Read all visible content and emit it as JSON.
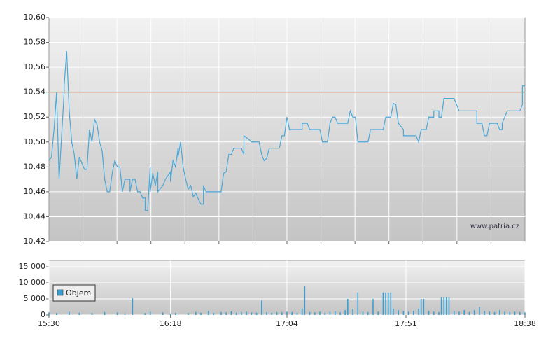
{
  "watermark": "www.patria.cz",
  "chart_data": [
    {
      "type": "line",
      "color": "#4aa8d8",
      "grid": true,
      "reference_line": {
        "value": 10.54,
        "color": "#e06666"
      },
      "x": [
        "15:30",
        "15:31",
        "15:32",
        "15:33",
        "15:34",
        "15:36",
        "15:36",
        "15:37",
        "15:38",
        "15:39",
        "15:40",
        "15:41",
        "15:42",
        "15:44",
        "15:45",
        "15:46",
        "15:47",
        "15:48",
        "15:49",
        "15:50",
        "15:51",
        "15:52",
        "15:53",
        "15:54",
        "15:55",
        "15:56",
        "15:57",
        "15:58",
        "15:59",
        "16:00",
        "16:02",
        "16:02",
        "16:03",
        "16:04",
        "16:05",
        "16:06",
        "16:07",
        "16:08",
        "16:08",
        "16:09",
        "16:10",
        "16:10",
        "16:11",
        "16:12",
        "16:13",
        "16:13",
        "16:15",
        "16:16",
        "16:18",
        "16:18",
        "16:19",
        "16:20",
        "16:21",
        "16:21",
        "16:22",
        "16:23",
        "16:24",
        "16:25",
        "16:26",
        "16:27",
        "16:28",
        "16:29",
        "16:30",
        "16:31",
        "16:31",
        "16:32",
        "16:38",
        "16:39",
        "16:40",
        "16:41",
        "16:42",
        "16:43",
        "16:46",
        "16:47",
        "16:47",
        "16:49",
        "16:50",
        "16:53",
        "16:54",
        "16:55",
        "16:56",
        "16:57",
        "17:01",
        "17:02",
        "17:03",
        "17:04",
        "17:05",
        "17:10",
        "17:10",
        "17:12",
        "17:13",
        "17:17",
        "17:18",
        "17:20",
        "17:21",
        "17:22",
        "17:23",
        "17:24",
        "17:28",
        "17:29",
        "17:30",
        "17:31",
        "17:32",
        "17:36",
        "17:37",
        "17:42",
        "17:43",
        "17:45",
        "17:46",
        "17:47",
        "17:48",
        "17:50",
        "17:50",
        "17:55",
        "17:56",
        "17:57",
        "17:59",
        "18:00",
        "18:02",
        "18:02",
        "18:04",
        "18:04",
        "18:05",
        "18:06",
        "18:10",
        "18:12",
        "18:19",
        "18:19",
        "18:21",
        "18:22",
        "18:23",
        "18:24",
        "18:27",
        "18:28",
        "18:29",
        "18:29",
        "18:30",
        "18:31",
        "18:36",
        "18:37",
        "18:37",
        "18:38"
      ],
      "values": [
        10.485,
        10.488,
        10.51,
        10.54,
        10.47,
        10.54,
        10.545,
        10.573,
        10.525,
        10.5,
        10.49,
        10.47,
        10.488,
        10.478,
        10.478,
        10.51,
        10.5,
        10.518,
        10.514,
        10.5,
        10.493,
        10.47,
        10.46,
        10.46,
        10.475,
        10.485,
        10.48,
        10.48,
        10.46,
        10.47,
        10.47,
        10.46,
        10.47,
        10.47,
        10.46,
        10.46,
        10.455,
        10.455,
        10.445,
        10.445,
        10.48,
        10.46,
        10.475,
        10.465,
        10.476,
        10.46,
        10.465,
        10.47,
        10.476,
        10.468,
        10.485,
        10.48,
        10.495,
        10.488,
        10.5,
        10.48,
        10.47,
        10.462,
        10.465,
        10.456,
        10.459,
        10.454,
        10.45,
        10.45,
        10.465,
        10.46,
        10.46,
        10.475,
        10.476,
        10.49,
        10.49,
        10.495,
        10.495,
        10.49,
        10.505,
        10.502,
        10.5,
        10.5,
        10.49,
        10.485,
        10.487,
        10.495,
        10.495,
        10.505,
        10.505,
        10.52,
        10.51,
        10.51,
        10.515,
        10.515,
        10.51,
        10.51,
        10.5,
        10.5,
        10.515,
        10.52,
        10.52,
        10.515,
        10.515,
        10.525,
        10.52,
        10.52,
        10.5,
        10.5,
        10.51,
        10.51,
        10.52,
        10.52,
        10.531,
        10.53,
        10.515,
        10.51,
        10.505,
        10.505,
        10.5,
        10.51,
        10.51,
        10.52,
        10.52,
        10.525,
        10.525,
        10.52,
        10.52,
        10.535,
        10.535,
        10.525,
        10.525,
        10.515,
        10.515,
        10.505,
        10.505,
        10.515,
        10.515,
        10.51,
        10.51,
        10.515,
        10.52,
        10.525,
        10.525,
        10.53,
        10.545,
        10.545
      ],
      "xlim": [
        "15:30",
        "18:38"
      ],
      "ylim": [
        10.42,
        10.6
      ],
      "yticks": [
        {
          "value": 10.42,
          "label": "10,42"
        },
        {
          "value": 10.44,
          "label": "10,44"
        },
        {
          "value": 10.46,
          "label": "10,46"
        },
        {
          "value": 10.48,
          "label": "10,48"
        },
        {
          "value": 10.5,
          "label": "10,50"
        },
        {
          "value": 10.52,
          "label": "10,52"
        },
        {
          "value": 10.54,
          "label": "10,54"
        },
        {
          "value": 10.56,
          "label": "10,56"
        },
        {
          "value": 10.58,
          "label": "10,58"
        },
        {
          "value": 10.6,
          "label": "10,60"
        }
      ]
    },
    {
      "type": "bar",
      "grid": true,
      "legend": "upper-left",
      "x": [
        "15:30",
        "15:33",
        "15:38",
        "15:42",
        "15:47",
        "15:52",
        "15:57",
        "16:00",
        "16:03",
        "16:08",
        "16:10",
        "16:15",
        "16:18",
        "16:20",
        "16:25",
        "16:28",
        "16:30",
        "16:33",
        "16:35",
        "16:38",
        "16:40",
        "16:42",
        "16:44",
        "16:46",
        "16:48",
        "16:50",
        "16:52",
        "16:54",
        "16:56",
        "16:58",
        "17:00",
        "17:02",
        "17:04",
        "17:06",
        "17:08",
        "17:10",
        "17:11",
        "17:13",
        "17:15",
        "17:17",
        "17:19",
        "17:21",
        "17:23",
        "17:25",
        "17:27",
        "17:28",
        "17:30",
        "17:32",
        "17:34",
        "17:36",
        "17:38",
        "17:40",
        "17:42",
        "17:43",
        "17:44",
        "17:45",
        "17:46",
        "17:48",
        "17:50",
        "17:52",
        "17:54",
        "17:56",
        "17:57",
        "17:58",
        "18:00",
        "18:02",
        "18:04",
        "18:05",
        "18:06",
        "18:07",
        "18:08",
        "18:10",
        "18:12",
        "18:14",
        "18:16",
        "18:18",
        "18:20",
        "18:22",
        "18:24",
        "18:26",
        "18:28",
        "18:30",
        "18:32",
        "18:34",
        "18:36",
        "18:38"
      ],
      "series": [
        {
          "name": "Objem",
          "color": "#3a9fd0",
          "values": [
            800,
            600,
            1000,
            700,
            600,
            900,
            800,
            500,
            5200,
            600,
            1000,
            800,
            500,
            700,
            600,
            900,
            700,
            1200,
            700,
            900,
            800,
            1100,
            700,
            900,
            1000,
            800,
            700,
            4500,
            900,
            700,
            900,
            800,
            1000,
            900,
            700,
            2000,
            9000,
            900,
            800,
            1000,
            700,
            900,
            1200,
            800,
            1500,
            5000,
            1800,
            7000,
            1000,
            900,
            5000,
            1000,
            7000,
            7000,
            7000,
            7000,
            2000,
            1500,
            1200,
            1000,
            1300,
            2000,
            5000,
            5000,
            1200,
            1000,
            900,
            5500,
            5500,
            5500,
            5500,
            1200,
            1000,
            1500,
            900,
            1500,
            2500,
            1200,
            1000,
            900,
            1500,
            1000,
            900,
            1000,
            900,
            800
          ]
        }
      ],
      "xlim": [
        "15:30",
        "18:38"
      ],
      "xticks": [
        "15:30",
        "16:18",
        "17:04",
        "17:51",
        "18:38"
      ],
      "ylim": [
        0,
        15000
      ],
      "yticks": [
        0,
        {
          "value": 5000,
          "label": "5 000"
        },
        {
          "value": 10000,
          "label": "10 000"
        },
        {
          "value": 15000,
          "label": "15 000"
        }
      ]
    }
  ]
}
